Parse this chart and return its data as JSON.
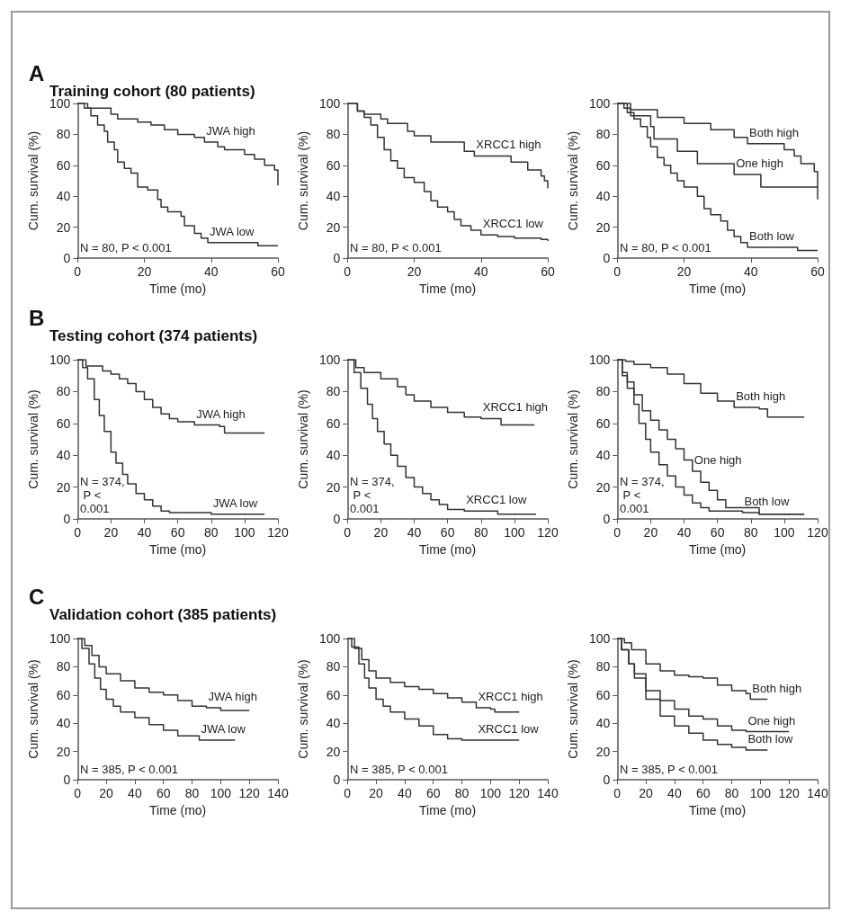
{
  "chart_data": [
    {
      "type": "step",
      "title": "A",
      "subtitle": "Training cohort (80 patients)",
      "xlabel": "Time (mo)",
      "ylabel": "Cum. survival (%)",
      "xlim": [
        0,
        60
      ],
      "xticks": [
        0,
        20,
        40,
        60
      ],
      "ylim": [
        0,
        100
      ],
      "yticks": [
        0,
        20,
        40,
        60,
        80,
        100
      ],
      "annotations": [
        "N = 80, P < 0.001"
      ],
      "series": [
        {
          "name": "JWA high",
          "color": "#333333",
          "x": [
            0,
            3,
            10,
            12,
            18,
            22,
            26,
            30,
            35,
            38,
            42,
            44,
            50,
            53,
            56,
            59,
            60
          ],
          "values": [
            100,
            97,
            93,
            90,
            88,
            86,
            83,
            80,
            78,
            75,
            72,
            70,
            67,
            64,
            60,
            57,
            47
          ]
        },
        {
          "name": "JWA low",
          "color": "#333333",
          "x": [
            0,
            2,
            4,
            6,
            8,
            9,
            11,
            12,
            14,
            16,
            18,
            21,
            24,
            25,
            27,
            31,
            32,
            35,
            37,
            39,
            54,
            60
          ],
          "values": [
            100,
            97,
            92,
            86,
            82,
            75,
            70,
            62,
            58,
            55,
            46,
            44,
            38,
            33,
            30,
            27,
            21,
            16,
            13,
            10,
            8,
            8
          ]
        }
      ]
    },
    {
      "type": "step",
      "xlabel": "Time (mo)",
      "ylabel": "Cum. survival (%)",
      "xlim": [
        0,
        60
      ],
      "xticks": [
        0,
        20,
        40,
        60
      ],
      "ylim": [
        0,
        100
      ],
      "yticks": [
        0,
        20,
        40,
        60,
        80,
        100
      ],
      "annotations": [
        "N = 80, P < 0.001"
      ],
      "series": [
        {
          "name": "XRCC1 high",
          "color": "#333333",
          "x": [
            0,
            3,
            5,
            10,
            12,
            18,
            20,
            25,
            35,
            38,
            45,
            49,
            54,
            58,
            59,
            60
          ],
          "values": [
            100,
            95,
            93,
            90,
            87,
            82,
            79,
            75,
            69,
            66,
            66,
            62,
            57,
            53,
            50,
            45
          ]
        },
        {
          "name": "XRCC1 low",
          "color": "#333333",
          "x": [
            0,
            3,
            5,
            7,
            9,
            11,
            13,
            15,
            17,
            20,
            23,
            25,
            27,
            30,
            32,
            34,
            37,
            40,
            45,
            50,
            58,
            60
          ],
          "values": [
            100,
            95,
            91,
            86,
            78,
            70,
            63,
            58,
            52,
            49,
            43,
            37,
            33,
            30,
            25,
            21,
            18,
            15,
            14,
            13,
            12,
            11
          ]
        }
      ]
    },
    {
      "type": "step",
      "xlabel": "Time (mo)",
      "ylabel": "Cum. survival (%)",
      "xlim": [
        0,
        60
      ],
      "xticks": [
        0,
        20,
        40,
        60
      ],
      "ylim": [
        0,
        100
      ],
      "yticks": [
        0,
        20,
        40,
        60,
        80,
        100
      ],
      "annotations": [
        "N = 80, P < 0.001"
      ],
      "series": [
        {
          "name": "Both high",
          "color": "#333333",
          "x": [
            0,
            4,
            12,
            20,
            28,
            35,
            39,
            50,
            53,
            55,
            59,
            60
          ],
          "values": [
            100,
            96,
            91,
            87,
            83,
            78,
            74,
            70,
            66,
            61,
            56,
            46
          ]
        },
        {
          "name": "One high",
          "color": "#333333",
          "x": [
            0,
            2,
            4,
            10,
            11,
            18,
            24,
            35,
            43,
            60
          ],
          "values": [
            100,
            97,
            92,
            85,
            77,
            69,
            61,
            54,
            46,
            38
          ]
        },
        {
          "name": "Both low",
          "color": "#333333",
          "x": [
            0,
            3,
            5,
            7,
            9,
            10,
            12,
            14,
            16,
            18,
            20,
            24,
            26,
            28,
            31,
            33,
            35,
            37,
            39,
            54,
            60
          ],
          "values": [
            100,
            94,
            90,
            85,
            78,
            72,
            65,
            60,
            55,
            50,
            46,
            40,
            32,
            28,
            24,
            18,
            14,
            10,
            7,
            5,
            5
          ]
        }
      ]
    },
    {
      "type": "step",
      "title": "B",
      "subtitle": "Testing cohort (374 patients)",
      "xlabel": "Time (mo)",
      "ylabel": "Cum. survival (%)",
      "xlim": [
        0,
        120
      ],
      "xticks": [
        0,
        20,
        40,
        60,
        80,
        100,
        120
      ],
      "ylim": [
        0,
        100
      ],
      "yticks": [
        0,
        20,
        40,
        60,
        80,
        100
      ],
      "annotations": [
        "N = 374, P < 0.001"
      ],
      "series": [
        {
          "name": "JWA high",
          "color": "#333333",
          "x": [
            0,
            5,
            15,
            20,
            25,
            30,
            35,
            40,
            45,
            50,
            55,
            60,
            70,
            85,
            88,
            112
          ],
          "values": [
            100,
            96,
            93,
            91,
            88,
            85,
            80,
            75,
            70,
            66,
            63,
            61,
            59,
            58,
            54,
            54
          ]
        },
        {
          "name": "JWA low",
          "color": "#333333",
          "x": [
            0,
            3,
            6,
            10,
            13,
            16,
            20,
            23,
            27,
            30,
            35,
            40,
            45,
            50,
            55,
            80,
            112
          ],
          "values": [
            100,
            95,
            88,
            75,
            65,
            55,
            42,
            35,
            28,
            22,
            16,
            12,
            8,
            5,
            4,
            3,
            3
          ]
        }
      ]
    },
    {
      "type": "step",
      "xlabel": "Time (mo)",
      "ylabel": "Cum. survival (%)",
      "xlim": [
        0,
        120
      ],
      "xticks": [
        0,
        20,
        40,
        60,
        80,
        100,
        120
      ],
      "ylim": [
        0,
        100
      ],
      "yticks": [
        0,
        20,
        40,
        60,
        80,
        100
      ],
      "annotations": [
        "N = 374, P < 0.001"
      ],
      "series": [
        {
          "name": "XRCC1 high",
          "color": "#333333",
          "x": [
            0,
            5,
            10,
            20,
            30,
            35,
            40,
            50,
            60,
            70,
            80,
            90,
            92,
            112
          ],
          "values": [
            100,
            95,
            92,
            88,
            83,
            78,
            74,
            70,
            67,
            64,
            63,
            63,
            59,
            59
          ]
        },
        {
          "name": "XRCC1 low",
          "color": "#333333",
          "x": [
            0,
            4,
            8,
            12,
            15,
            18,
            22,
            26,
            30,
            35,
            40,
            45,
            50,
            55,
            60,
            70,
            90,
            113
          ],
          "values": [
            100,
            92,
            82,
            72,
            63,
            55,
            47,
            40,
            33,
            26,
            20,
            16,
            12,
            9,
            6,
            5,
            3,
            3
          ]
        }
      ]
    },
    {
      "type": "step",
      "xlabel": "Time (mo)",
      "ylabel": "Cum. survival (%)",
      "xlim": [
        0,
        120
      ],
      "xticks": [
        0,
        20,
        40,
        60,
        80,
        100,
        120
      ],
      "ylim": [
        0,
        100
      ],
      "yticks": [
        0,
        20,
        40,
        60,
        80,
        100
      ],
      "annotations": [
        "N = 374, P < 0.001"
      ],
      "series": [
        {
          "name": "Both high",
          "color": "#333333",
          "x": [
            0,
            5,
            10,
            20,
            30,
            40,
            50,
            60,
            70,
            85,
            90,
            112
          ],
          "values": [
            100,
            99,
            97,
            95,
            91,
            85,
            79,
            74,
            70,
            69,
            64,
            64
          ]
        },
        {
          "name": "One high",
          "color": "#333333",
          "x": [
            0,
            3,
            6,
            10,
            15,
            20,
            25,
            30,
            35,
            40,
            45,
            50,
            55,
            60,
            65,
            80,
            85,
            112
          ],
          "values": [
            100,
            92,
            86,
            78,
            68,
            62,
            56,
            50,
            44,
            37,
            30,
            23,
            18,
            12,
            7,
            7,
            3,
            3
          ]
        },
        {
          "name": "Both low",
          "color": "#333333",
          "x": [
            0,
            3,
            6,
            10,
            13,
            17,
            20,
            25,
            30,
            35,
            40,
            45,
            50,
            55,
            75,
            85,
            112
          ],
          "values": [
            100,
            90,
            82,
            72,
            60,
            50,
            42,
            34,
            27,
            20,
            15,
            10,
            7,
            5,
            4,
            3,
            3
          ]
        }
      ]
    },
    {
      "type": "step",
      "title": "C",
      "subtitle": "Validation cohort (385 patients)",
      "xlabel": "Time (mo)",
      "ylabel": "Cum. survival (%)",
      "xlim": [
        0,
        140
      ],
      "xticks": [
        0,
        20,
        40,
        60,
        80,
        100,
        120,
        140
      ],
      "ylim": [
        0,
        100
      ],
      "yticks": [
        0,
        20,
        40,
        60,
        80,
        100
      ],
      "annotations": [
        "N = 385, P < 0.001"
      ],
      "series": [
        {
          "name": "JWA high",
          "color": "#333333",
          "x": [
            0,
            5,
            10,
            15,
            20,
            30,
            40,
            50,
            60,
            70,
            80,
            90,
            100,
            120
          ],
          "values": [
            100,
            95,
            88,
            80,
            75,
            70,
            65,
            62,
            60,
            56,
            52,
            51,
            49,
            49
          ]
        },
        {
          "name": "JWA low",
          "color": "#333333",
          "x": [
            0,
            3,
            8,
            12,
            16,
            20,
            25,
            30,
            40,
            50,
            60,
            70,
            80,
            85,
            110
          ],
          "values": [
            100,
            93,
            82,
            72,
            64,
            57,
            52,
            48,
            44,
            39,
            35,
            31,
            31,
            28,
            28
          ]
        }
      ]
    },
    {
      "type": "step",
      "xlabel": "Time (mo)",
      "ylabel": "Cum. survival (%)",
      "xlim": [
        0,
        140
      ],
      "xticks": [
        0,
        20,
        40,
        60,
        80,
        100,
        120,
        140
      ],
      "ylim": [
        0,
        100
      ],
      "yticks": [
        0,
        20,
        40,
        60,
        80,
        100
      ],
      "annotations": [
        "N = 385, P < 0.001"
      ],
      "series": [
        {
          "name": "XRCC1 high",
          "color": "#333333",
          "x": [
            0,
            5,
            10,
            15,
            20,
            30,
            40,
            50,
            60,
            70,
            80,
            90,
            100,
            103,
            120
          ],
          "values": [
            100,
            93,
            85,
            77,
            72,
            69,
            66,
            64,
            61,
            58,
            55,
            51,
            50,
            48,
            48
          ]
        },
        {
          "name": "XRCC1 low",
          "color": "#333333",
          "x": [
            0,
            3,
            8,
            12,
            15,
            20,
            25,
            30,
            40,
            50,
            60,
            70,
            80,
            90,
            120
          ],
          "values": [
            100,
            94,
            82,
            72,
            65,
            57,
            52,
            48,
            43,
            38,
            32,
            29,
            28,
            28,
            28
          ]
        }
      ]
    },
    {
      "type": "step",
      "xlabel": "Time (mo)",
      "ylabel": "Cum. survival (%)",
      "xlim": [
        0,
        140
      ],
      "xticks": [
        0,
        20,
        40,
        60,
        80,
        100,
        120,
        140
      ],
      "ylim": [
        0,
        100
      ],
      "yticks": [
        0,
        20,
        40,
        60,
        80,
        100
      ],
      "annotations": [
        "N = 385, P < 0.001"
      ],
      "series": [
        {
          "name": "Both high",
          "color": "#333333",
          "x": [
            0,
            5,
            10,
            20,
            30,
            40,
            50,
            60,
            70,
            80,
            90,
            93,
            105
          ],
          "values": [
            100,
            97,
            92,
            82,
            77,
            74,
            73,
            72,
            67,
            63,
            61,
            57,
            57
          ]
        },
        {
          "name": "One high",
          "color": "#333333",
          "x": [
            0,
            3,
            8,
            12,
            20,
            30,
            40,
            50,
            60,
            70,
            80,
            90,
            120
          ],
          "values": [
            100,
            92,
            82,
            75,
            63,
            56,
            50,
            45,
            43,
            38,
            35,
            34,
            34
          ]
        },
        {
          "name": "Both low",
          "color": "#333333",
          "x": [
            0,
            3,
            8,
            12,
            20,
            30,
            40,
            50,
            60,
            70,
            80,
            90,
            105
          ],
          "values": [
            100,
            92,
            82,
            72,
            57,
            45,
            38,
            33,
            28,
            25,
            23,
            21,
            21
          ]
        }
      ]
    }
  ]
}
